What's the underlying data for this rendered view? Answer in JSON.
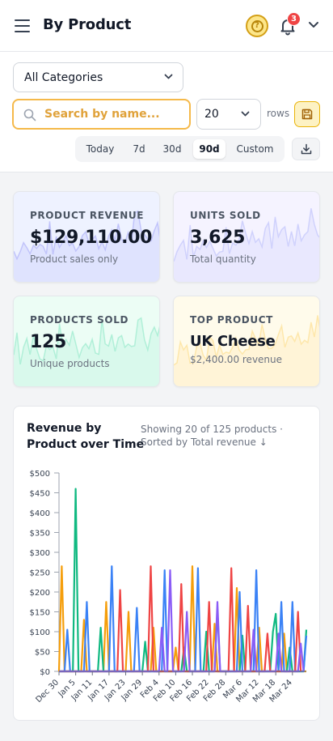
{
  "header": {
    "title": "By Product",
    "notification_count": "3"
  },
  "filters": {
    "category": "All Categories",
    "search_placeholder": "Search by name...",
    "search_value": "",
    "rows_value": "20",
    "rows_label": "rows",
    "ranges": [
      "Today",
      "7d",
      "30d",
      "90d",
      "Custom"
    ],
    "active_range": "90d"
  },
  "cards": [
    {
      "label": "PRODUCT REVENUE",
      "value": "$129,110.00",
      "sub": "Product sales only",
      "color": "#6366f1",
      "bg": "#eef2ff"
    },
    {
      "label": "UNITS SOLD",
      "value": "3,625",
      "sub": "Total quantity",
      "color": "#818cf8",
      "bg": "#f5f3ff"
    },
    {
      "label": "PRODUCTS SOLD",
      "value": "125",
      "sub": "Unique products",
      "color": "#34d399",
      "bg": "#ecfdf5"
    },
    {
      "label": "TOP PRODUCT",
      "value": "UK Cheese",
      "sub": "$2,400.00 revenue",
      "color": "#fbbf24",
      "bg": "#fffbeb"
    }
  ],
  "chart": {
    "title": "Revenue by Product over Time",
    "meta": "Showing 20 of 125 products · Sorted by Total revenue ↓"
  },
  "chart_data": {
    "type": "line",
    "title": "Revenue by Product over Time",
    "xlabel": "",
    "ylabel": "",
    "ylim": [
      0,
      500
    ],
    "y_ticks": [
      "$0",
      "$50",
      "$100",
      "$150",
      "$200",
      "$250",
      "$300",
      "$350",
      "$400",
      "$450",
      "$500"
    ],
    "x_ticks": [
      "Dec 30",
      "Jan 5",
      "Jan 11",
      "Jan 17",
      "Jan 23",
      "Jan 29",
      "Feb 4",
      "Feb 10",
      "Feb 16",
      "Feb 22",
      "Feb 28",
      "Mar 6",
      "Mar 12",
      "Mar 18",
      "Mar 24"
    ],
    "x_tick_days": [
      0,
      6,
      12,
      18,
      24,
      30,
      36,
      42,
      48,
      54,
      60,
      66,
      72,
      78,
      84
    ],
    "x_days": 90,
    "grid": false,
    "series": [
      {
        "color": "#f59e0b",
        "points": [
          [
            0,
            0
          ],
          [
            1,
            265
          ],
          [
            2,
            0
          ],
          [
            8,
            0
          ],
          [
            9,
            130
          ],
          [
            10,
            0
          ],
          [
            16,
            0
          ],
          [
            17,
            175
          ],
          [
            18,
            0
          ],
          [
            24,
            0
          ],
          [
            25,
            150
          ],
          [
            26,
            0
          ],
          [
            33,
            0
          ],
          [
            34,
            110
          ],
          [
            35,
            0
          ],
          [
            41,
            0
          ],
          [
            42,
            60
          ],
          [
            43,
            0
          ],
          [
            47,
            0
          ],
          [
            48,
            265
          ],
          [
            49,
            0
          ],
          [
            55,
            0
          ],
          [
            56,
            120
          ],
          [
            57,
            0
          ],
          [
            63,
            0
          ],
          [
            64,
            210
          ],
          [
            65,
            0
          ],
          [
            71,
            0
          ],
          [
            72,
            110
          ],
          [
            73,
            0
          ],
          [
            80,
            0
          ],
          [
            81,
            95
          ],
          [
            82,
            0
          ],
          [
            88,
            0
          ],
          [
            89,
            0
          ]
        ]
      },
      {
        "color": "#10b981",
        "points": [
          [
            0,
            0
          ],
          [
            5,
            0
          ],
          [
            6,
            460
          ],
          [
            7,
            0
          ],
          [
            14,
            0
          ],
          [
            15,
            110
          ],
          [
            16,
            0
          ],
          [
            30,
            0
          ],
          [
            31,
            75
          ],
          [
            32,
            0
          ],
          [
            44,
            0
          ],
          [
            45,
            60
          ],
          [
            46,
            0
          ],
          [
            52,
            0
          ],
          [
            53,
            100
          ],
          [
            54,
            0
          ],
          [
            65,
            0
          ],
          [
            66,
            90
          ],
          [
            67,
            0
          ],
          [
            76,
            0
          ],
          [
            77,
            100
          ],
          [
            78,
            145
          ],
          [
            79,
            0
          ],
          [
            82,
            0
          ],
          [
            83,
            60
          ],
          [
            84,
            0
          ],
          [
            88,
            0
          ],
          [
            89,
            105
          ]
        ]
      },
      {
        "color": "#3b82f6",
        "points": [
          [
            0,
            0
          ],
          [
            2,
            0
          ],
          [
            3,
            105
          ],
          [
            4,
            0
          ],
          [
            9,
            0
          ],
          [
            10,
            175
          ],
          [
            11,
            0
          ],
          [
            18,
            0
          ],
          [
            19,
            265
          ],
          [
            20,
            0
          ],
          [
            27,
            0
          ],
          [
            28,
            160
          ],
          [
            29,
            0
          ],
          [
            37,
            0
          ],
          [
            38,
            255
          ],
          [
            39,
            0
          ],
          [
            49,
            0
          ],
          [
            50,
            260
          ],
          [
            51,
            0
          ],
          [
            56,
            0
          ],
          [
            57,
            155
          ],
          [
            58,
            0
          ],
          [
            64,
            0
          ],
          [
            65,
            200
          ],
          [
            66,
            0
          ],
          [
            70,
            0
          ],
          [
            71,
            255
          ],
          [
            72,
            0
          ],
          [
            79,
            0
          ],
          [
            80,
            175
          ],
          [
            81,
            0
          ],
          [
            83,
            0
          ],
          [
            84,
            175
          ],
          [
            85,
            0
          ],
          [
            88,
            0
          ],
          [
            89,
            90
          ]
        ]
      },
      {
        "color": "#ef4444",
        "points": [
          [
            0,
            0
          ],
          [
            21,
            0
          ],
          [
            22,
            205
          ],
          [
            23,
            0
          ],
          [
            32,
            0
          ],
          [
            33,
            265
          ],
          [
            34,
            0
          ],
          [
            43,
            0
          ],
          [
            44,
            220
          ],
          [
            45,
            0
          ],
          [
            53,
            0
          ],
          [
            54,
            175
          ],
          [
            55,
            0
          ],
          [
            61,
            0
          ],
          [
            62,
            260
          ],
          [
            63,
            0
          ],
          [
            67,
            0
          ],
          [
            68,
            165
          ],
          [
            69,
            0
          ],
          [
            74,
            0
          ],
          [
            75,
            95
          ],
          [
            76,
            0
          ],
          [
            85,
            0
          ],
          [
            86,
            150
          ],
          [
            87,
            0
          ]
        ]
      },
      {
        "color": "#8b5cf6",
        "points": [
          [
            0,
            0
          ],
          [
            36,
            0
          ],
          [
            37,
            110
          ],
          [
            38,
            0
          ],
          [
            39,
            0
          ],
          [
            40,
            255
          ],
          [
            41,
            0
          ],
          [
            45,
            0
          ],
          [
            46,
            150
          ],
          [
            47,
            0
          ],
          [
            56,
            0
          ],
          [
            57,
            175
          ],
          [
            58,
            0
          ],
          [
            69,
            0
          ],
          [
            70,
            105
          ],
          [
            71,
            0
          ],
          [
            78,
            0
          ],
          [
            79,
            95
          ],
          [
            80,
            0
          ],
          [
            86,
            0
          ],
          [
            87,
            70
          ],
          [
            88,
            0
          ]
        ]
      }
    ]
  }
}
